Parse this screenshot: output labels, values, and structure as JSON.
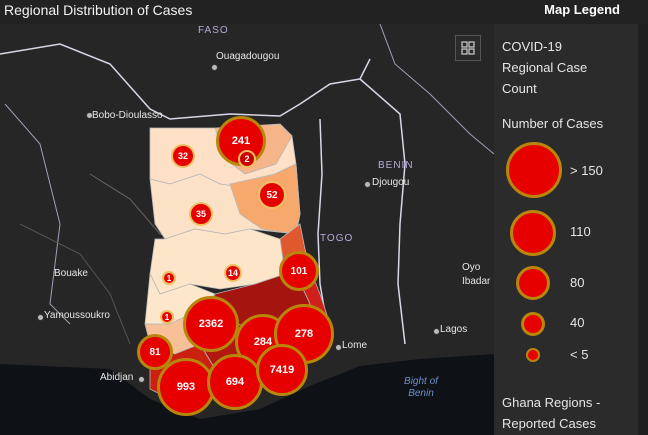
{
  "header": {
    "title": "Regional Distribution of Cases",
    "legend_title": "Map Legend"
  },
  "map": {
    "places": {
      "faso": "FASO",
      "ouagadougou": "Ouagadougou",
      "bobo": "Bobo-Dioulasso",
      "benin": "BENIN",
      "djougou": "Djougou",
      "togo": "TOGO",
      "bouake": "Bouake",
      "yamoussoukro": "Yamoussoukro",
      "oyo": "Oyo",
      "ibadan": "Ibadar",
      "lagos": "Lagos",
      "lome": "Lome",
      "abidjan": "Abidjan",
      "bight": "Bight of\nBenin"
    },
    "bubbles": {
      "upper_east": "241",
      "upper_east_small": "2",
      "upper_west": "32",
      "northern": "52",
      "savannah": "35",
      "oti": "101",
      "bono_east": "14",
      "bono": "1",
      "ahafo": "1",
      "ashanti": "2362",
      "eastern": "284",
      "volta": "278",
      "western_north": "81",
      "western": "993",
      "central": "694",
      "greater_accra": "7419"
    }
  },
  "legend": {
    "layer1_title": "COVID-19 Regional Case Count",
    "field_label": "Number of Cases",
    "classes": [
      "> 150",
      "110",
      "80",
      "40",
      "< 5"
    ],
    "layer2_title": "Ghana Regions - Reported Cases"
  },
  "colors": {
    "bubble_fill": "#e60000",
    "bubble_ring": "#b8860b",
    "region_light": "#fde0c5",
    "region_mid": "#f7b27a",
    "region_dark": "#c4160c",
    "background": "#1a1a1a"
  }
}
